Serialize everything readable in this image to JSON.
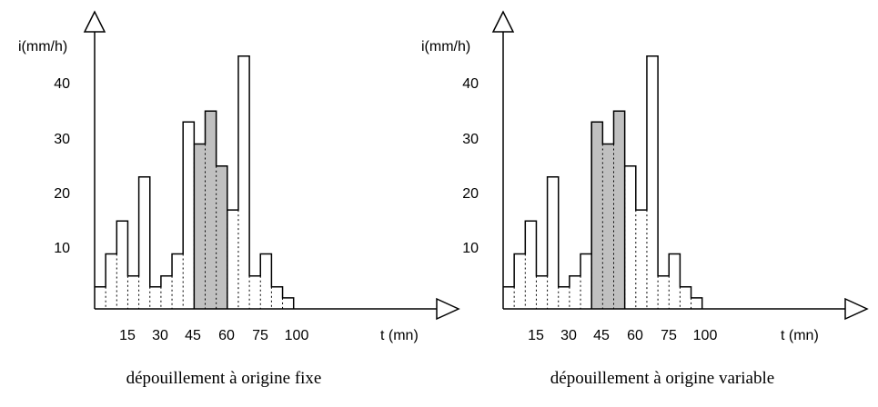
{
  "chart_data": [
    {
      "type": "bar",
      "title": "dépouillement à origine fixe",
      "ylabel": "i(mm/h)",
      "xlabel": "t (mn)",
      "x_ticks": [
        "15",
        "30",
        "45",
        "60",
        "75",
        "100"
      ],
      "y_ticks": [
        "10",
        "20",
        "30",
        "40"
      ],
      "ylim": [
        0,
        50
      ],
      "bar_width_mn": 5,
      "values": [
        4,
        10,
        16,
        6,
        24,
        4,
        6,
        10,
        34,
        30,
        36,
        26,
        18,
        46,
        6,
        10,
        4,
        2
      ],
      "highlighted_bars": [
        9,
        10,
        11
      ],
      "highlight_color": "#c0c0c0"
    },
    {
      "type": "bar",
      "title": "dépouillement à origine variable",
      "ylabel": "i(mm/h)",
      "xlabel": "t (mn)",
      "x_ticks": [
        "15",
        "30",
        "45",
        "60",
        "75",
        "100"
      ],
      "y_ticks": [
        "10",
        "20",
        "30",
        "40"
      ],
      "ylim": [
        0,
        50
      ],
      "bar_width_mn": 5,
      "values": [
        4,
        10,
        16,
        6,
        24,
        4,
        6,
        10,
        34,
        30,
        36,
        26,
        18,
        46,
        6,
        10,
        4,
        2
      ],
      "highlighted_bars": [
        8,
        9,
        10
      ],
      "highlight_color": "#c0c0c0"
    }
  ]
}
